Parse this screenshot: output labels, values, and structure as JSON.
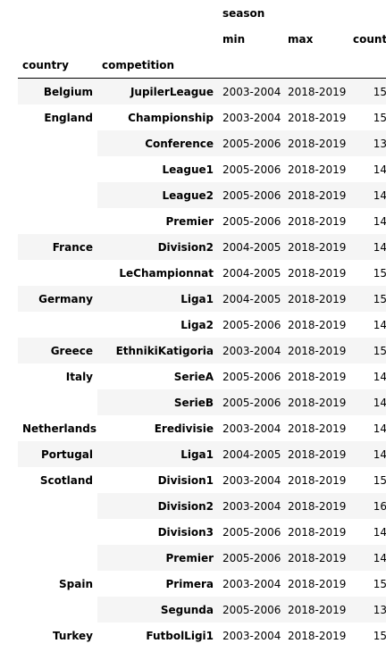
{
  "header": {
    "group_label": "season",
    "min_label": "min",
    "max_label": "max",
    "count_label": "count",
    "country_label": "country",
    "competition_label": "competition"
  },
  "rows": [
    {
      "country": "Belgium",
      "competition": "JupilerLeague",
      "min": "2003-2004",
      "max": "2018-2019",
      "count": "15"
    },
    {
      "country": "England",
      "competition": "Championship",
      "min": "2003-2004",
      "max": "2018-2019",
      "count": "15"
    },
    {
      "country": "",
      "competition": "Conference",
      "min": "2005-2006",
      "max": "2018-2019",
      "count": "13"
    },
    {
      "country": "",
      "competition": "League1",
      "min": "2005-2006",
      "max": "2018-2019",
      "count": "14"
    },
    {
      "country": "",
      "competition": "League2",
      "min": "2005-2006",
      "max": "2018-2019",
      "count": "14"
    },
    {
      "country": "",
      "competition": "Premier",
      "min": "2005-2006",
      "max": "2018-2019",
      "count": "14"
    },
    {
      "country": "France",
      "competition": "Division2",
      "min": "2004-2005",
      "max": "2018-2019",
      "count": "14"
    },
    {
      "country": "",
      "competition": "LeChampionnat",
      "min": "2004-2005",
      "max": "2018-2019",
      "count": "15"
    },
    {
      "country": "Germany",
      "competition": "Liga1",
      "min": "2004-2005",
      "max": "2018-2019",
      "count": "15"
    },
    {
      "country": "",
      "competition": "Liga2",
      "min": "2005-2006",
      "max": "2018-2019",
      "count": "14"
    },
    {
      "country": "Greece",
      "competition": "EthnikiKatigoria",
      "min": "2003-2004",
      "max": "2018-2019",
      "count": "15"
    },
    {
      "country": "Italy",
      "competition": "SerieA",
      "min": "2005-2006",
      "max": "2018-2019",
      "count": "14"
    },
    {
      "country": "",
      "competition": "SerieB",
      "min": "2005-2006",
      "max": "2018-2019",
      "count": "14"
    },
    {
      "country": "Netherlands",
      "competition": "Eredivisie",
      "min": "2003-2004",
      "max": "2018-2019",
      "count": "14"
    },
    {
      "country": "Portugal",
      "competition": "Liga1",
      "min": "2004-2005",
      "max": "2018-2019",
      "count": "14"
    },
    {
      "country": "Scotland",
      "competition": "Division1",
      "min": "2003-2004",
      "max": "2018-2019",
      "count": "15"
    },
    {
      "country": "",
      "competition": "Division2",
      "min": "2003-2004",
      "max": "2018-2019",
      "count": "16"
    },
    {
      "country": "",
      "competition": "Division3",
      "min": "2005-2006",
      "max": "2018-2019",
      "count": "14"
    },
    {
      "country": "",
      "competition": "Premier",
      "min": "2005-2006",
      "max": "2018-2019",
      "count": "14"
    },
    {
      "country": "Spain",
      "competition": "Primera",
      "min": "2003-2004",
      "max": "2018-2019",
      "count": "15"
    },
    {
      "country": "",
      "competition": "Segunda",
      "min": "2005-2006",
      "max": "2018-2019",
      "count": "13"
    },
    {
      "country": "Turkey",
      "competition": "FutbolLigi1",
      "min": "2003-2004",
      "max": "2018-2019",
      "count": "15"
    }
  ]
}
